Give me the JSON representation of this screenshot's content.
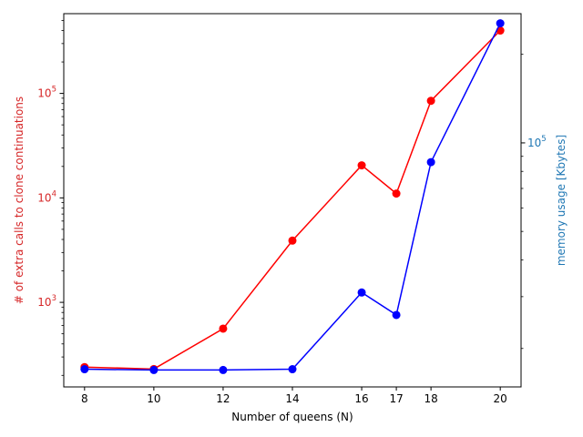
{
  "chart_data": {
    "type": "line",
    "xlabel": "Number of queens (N)",
    "x": [
      8,
      10,
      12,
      14,
      16,
      17,
      18,
      20
    ],
    "x_ticks": [
      8,
      10,
      12,
      14,
      16,
      17,
      18,
      20
    ],
    "xlim": [
      7.4,
      20.6
    ],
    "grid": false,
    "legend": "none",
    "axes": {
      "left": {
        "label": "# of extra calls to clone continuations",
        "scale": "log",
        "ylim": [
          155,
          580000
        ],
        "color": "#d62728",
        "major_ticks": [
          1000,
          10000,
          100000
        ],
        "major_tick_labels": [
          "10",
          "10",
          "10"
        ],
        "major_tick_exponents": [
          "3",
          "4",
          "5"
        ]
      },
      "right": {
        "label": "memory usage [Kbytes]",
        "scale": "log",
        "ylim": [
          14800,
          275000
        ],
        "color": "#1f77b4",
        "major_ticks": [
          100000
        ],
        "major_tick_labels": [
          "10"
        ],
        "major_tick_exponents": [
          "5"
        ]
      }
    },
    "series": [
      {
        "axis": "left",
        "color": "#ff0000",
        "values": [
          240,
          230,
          560,
          3900,
          20500,
          11000,
          85000,
          400000
        ]
      },
      {
        "axis": "right",
        "color": "#0000ff",
        "values": [
          17000,
          16900,
          16900,
          17000,
          31000,
          26000,
          86000,
          255000
        ]
      }
    ]
  }
}
